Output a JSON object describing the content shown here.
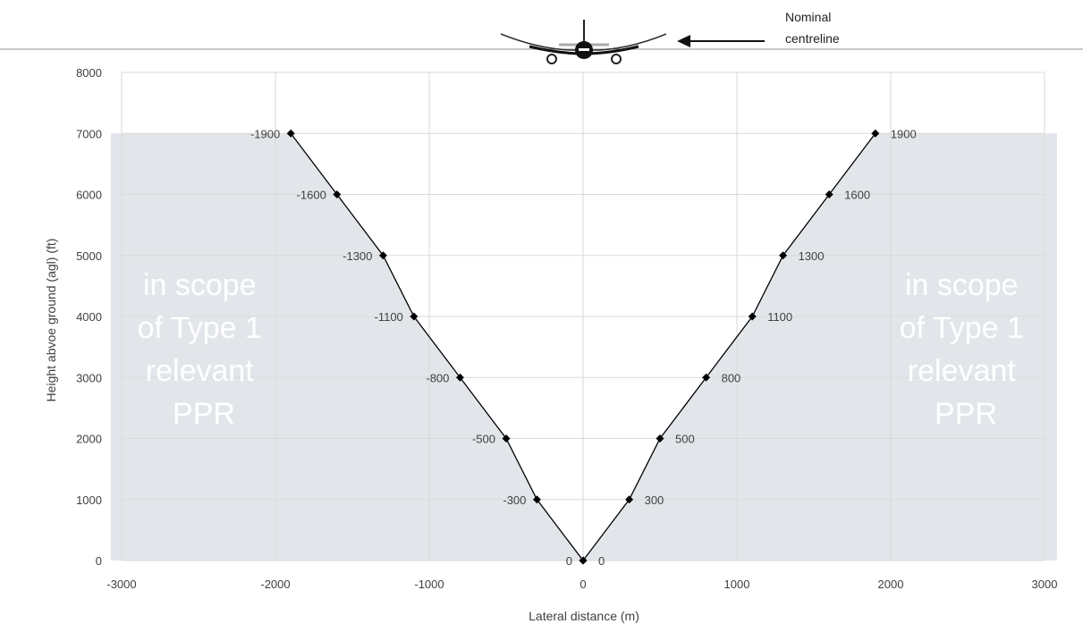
{
  "chart_data": {
    "type": "scatter",
    "title": "",
    "xlabel": "Lateral distance (m)",
    "ylabel": "Height abvoe ground (agl) (ft)",
    "xlim": [
      -3000,
      3000
    ],
    "ylim": [
      0,
      8000
    ],
    "xticks": [
      "-3000",
      "-2000",
      "-1000",
      "0",
      "1000",
      "2000",
      "3000"
    ],
    "yticks": [
      "0",
      "1000",
      "2000",
      "3000",
      "4000",
      "5000",
      "6000",
      "7000",
      "8000"
    ],
    "grid": true,
    "legend": "none",
    "series": [
      {
        "points": [
          {
            "x": 0,
            "y": 0,
            "label": "0"
          },
          {
            "x": -300,
            "y": 1000,
            "label": "-300"
          },
          {
            "x": -500,
            "y": 2000,
            "label": "-500"
          },
          {
            "x": -800,
            "y": 3000,
            "label": "-800"
          },
          {
            "x": -1100,
            "y": 4000,
            "label": "-1100"
          },
          {
            "x": -1300,
            "y": 5000,
            "label": "-1300"
          },
          {
            "x": -1600,
            "y": 6000,
            "label": "-1600"
          },
          {
            "x": -1900,
            "y": 7000,
            "label": "-1900"
          }
        ]
      },
      {
        "points": [
          {
            "x": 0,
            "y": 0,
            "label": "0"
          },
          {
            "x": 300,
            "y": 1000,
            "label": "300"
          },
          {
            "x": 500,
            "y": 2000,
            "label": "500"
          },
          {
            "x": 800,
            "y": 3000,
            "label": "800"
          },
          {
            "x": 1100,
            "y": 4000,
            "label": "1100"
          },
          {
            "x": 1300,
            "y": 5000,
            "label": "1300"
          },
          {
            "x": 1600,
            "y": 6000,
            "label": "1600"
          },
          {
            "x": 1900,
            "y": 7000,
            "label": "1900"
          }
        ]
      }
    ],
    "regions": {
      "top_y": 7000,
      "color": "#e2e6ea",
      "left_text": [
        "in scope",
        "of Type 1",
        "relevant",
        "PPR"
      ],
      "right_text": [
        "in scope",
        "of Type 1",
        "relevant",
        "PPR"
      ]
    },
    "annotation": {
      "lines": [
        "Nominal",
        "centreline"
      ],
      "arrow": "left",
      "icon": "aircraft-icon"
    },
    "colors": {
      "marker": "#000000",
      "line": "#000000",
      "grid": "#d9d9d9",
      "region": "#e2e6ea"
    }
  }
}
